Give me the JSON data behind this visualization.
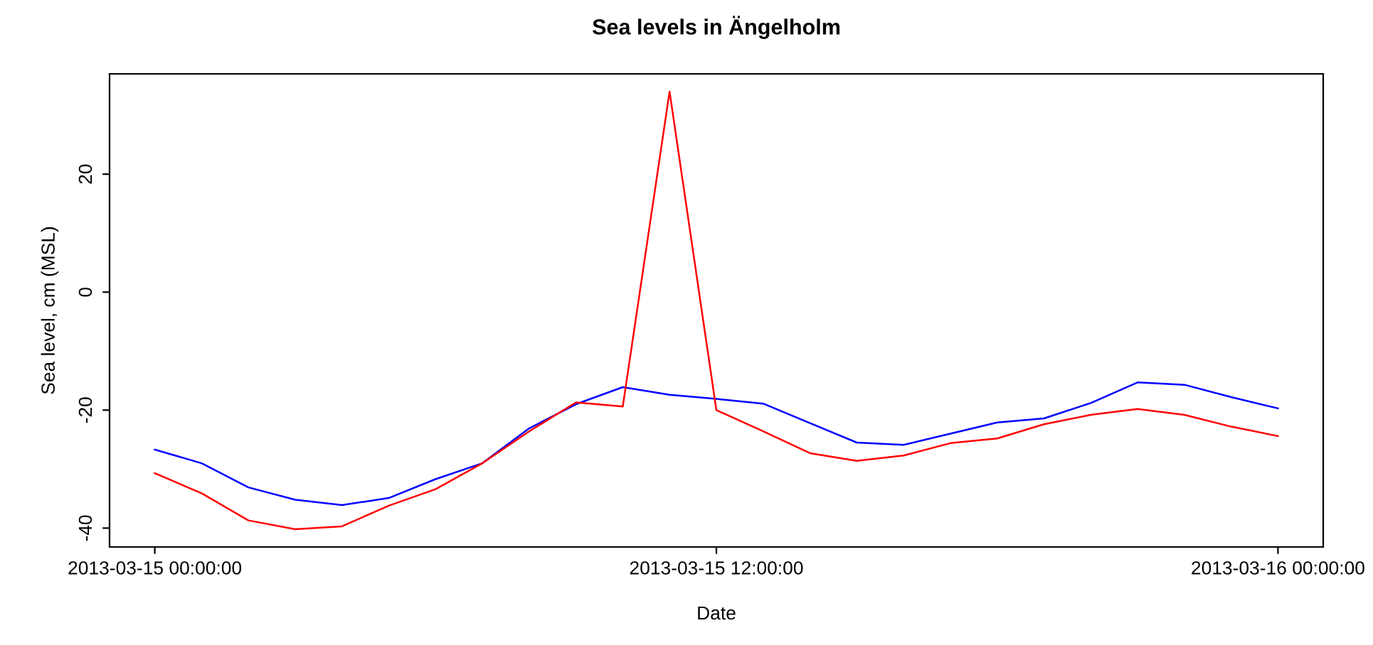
{
  "chart_data": {
    "type": "line",
    "title": "Sea levels in Ängelholm",
    "xlabel": "Date",
    "ylabel": "Sea level, cm (MSL)",
    "x": [
      "2013-03-15T00:00",
      "2013-03-15T01:00",
      "2013-03-15T02:00",
      "2013-03-15T03:00",
      "2013-03-15T04:00",
      "2013-03-15T05:00",
      "2013-03-15T06:00",
      "2013-03-15T07:00",
      "2013-03-15T08:00",
      "2013-03-15T09:00",
      "2013-03-15T10:00",
      "2013-03-15T11:00",
      "2013-03-15T12:00",
      "2013-03-15T13:00",
      "2013-03-15T14:00",
      "2013-03-15T15:00",
      "2013-03-15T16:00",
      "2013-03-15T17:00",
      "2013-03-15T18:00",
      "2013-03-15T19:00",
      "2013-03-15T20:00",
      "2013-03-15T21:00",
      "2013-03-15T22:00",
      "2013-03-15T23:00",
      "2013-03-16T00:00"
    ],
    "series": [
      {
        "color": "#0000ff",
        "values": [
          -26.7,
          -29.0,
          -33.1,
          -35.2,
          -36.1,
          -34.9,
          -31.7,
          -29.0,
          -23.1,
          -19.0,
          -16.1,
          -17.4,
          -18.1,
          -18.9,
          -22.2,
          -25.5,
          -25.9,
          -24.0,
          -22.1,
          -21.4,
          -18.8,
          -15.3,
          -15.7,
          -17.8,
          -19.7
        ]
      },
      {
        "color": "#ff0000",
        "values": [
          -30.7,
          -34.1,
          -38.7,
          -40.2,
          -39.7,
          -36.2,
          -33.4,
          -29.0,
          -23.6,
          -18.7,
          -19.4,
          34.0,
          -20.0,
          -23.6,
          -27.3,
          -28.6,
          -27.7,
          -25.6,
          -24.8,
          -22.4,
          -20.8,
          -19.8,
          -20.8,
          -22.8,
          -24.4
        ]
      }
    ],
    "xlim": [
      "2013-03-14T23:02",
      "2013-03-16T00:58"
    ],
    "xticks": [
      {
        "value": "2013-03-15T00:00",
        "label": "2013-03-15 00:00:00"
      },
      {
        "value": "2013-03-15T12:00",
        "label": "2013-03-15 12:00:00"
      },
      {
        "value": "2013-03-16T00:00",
        "label": "2013-03-16 00:00:00"
      }
    ],
    "ylim": [
      -43.2,
      37.0
    ],
    "yticks": [
      -40,
      -20,
      0,
      20
    ],
    "grid": false,
    "marker": "none",
    "line_style": "solid"
  }
}
